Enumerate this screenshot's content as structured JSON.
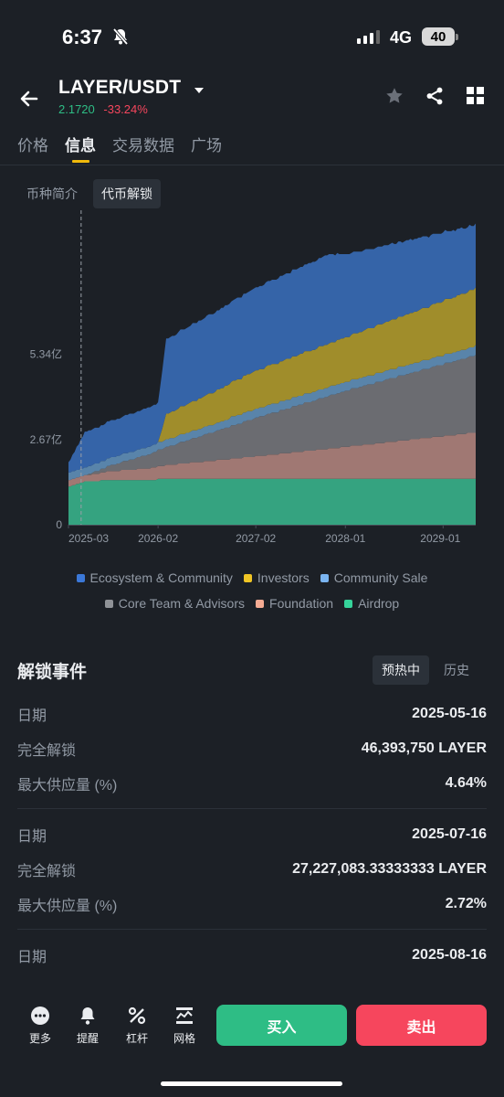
{
  "status": {
    "time": "6:37",
    "network": "4G",
    "battery": "40"
  },
  "header": {
    "pair": "LAYER/USDT",
    "price": "2.1720",
    "change": "-33.24%"
  },
  "tabs": [
    {
      "label": "价格"
    },
    {
      "label": "信息"
    },
    {
      "label": "交易数据"
    },
    {
      "label": "广场"
    }
  ],
  "subtabs": [
    {
      "label": "币种简介"
    },
    {
      "label": "代币解锁"
    }
  ],
  "chart_data": {
    "type": "area",
    "stacked": true,
    "ytick_labels": [
      "0",
      "2.67亿",
      "5.34亿"
    ],
    "y_ticks": [
      0,
      267,
      534
    ],
    "ylim": [
      0,
      1000
    ],
    "xtick_labels": [
      "2025-03",
      "2026-02",
      "2027-02",
      "2028-01",
      "2029-01"
    ],
    "x_ticks": [
      0,
      11,
      23,
      34,
      46
    ],
    "xlim": [
      0,
      50
    ],
    "current_marker": 2,
    "legend_position": "bottom",
    "series": [
      {
        "name": "Airdrop",
        "color": "#35a380",
        "values": [
          [
            0,
            120
          ],
          [
            2,
            135
          ],
          [
            5,
            140
          ],
          [
            11,
            142
          ],
          [
            23,
            142
          ],
          [
            50,
            142
          ]
        ]
      },
      {
        "name": "Foundation",
        "color": "#a07873",
        "values": [
          [
            0,
            20
          ],
          [
            2,
            20
          ],
          [
            11,
            40
          ],
          [
            23,
            70
          ],
          [
            34,
            100
          ],
          [
            50,
            145
          ]
        ]
      },
      {
        "name": "Core Team & Advisors",
        "color": "#6b6c71",
        "values": [
          [
            0,
            0
          ],
          [
            2,
            0
          ],
          [
            11,
            50
          ],
          [
            23,
            120
          ],
          [
            34,
            175
          ],
          [
            50,
            242
          ]
        ]
      },
      {
        "name": "Community Sale",
        "color": "#5984aa",
        "values": [
          [
            0,
            25
          ],
          [
            2,
            25
          ],
          [
            11,
            25
          ],
          [
            12,
            25
          ],
          [
            50,
            30
          ]
        ]
      },
      {
        "name": "Investors",
        "color": "#a08d2b",
        "values": [
          [
            0,
            0
          ],
          [
            2,
            0
          ],
          [
            11,
            0
          ],
          [
            12,
            80
          ],
          [
            23,
            120
          ],
          [
            34,
            140
          ],
          [
            50,
            180
          ]
        ]
      },
      {
        "name": "Ecosystem & Community",
        "color": "#3564a8",
        "values": [
          [
            0,
            30
          ],
          [
            2,
            110
          ],
          [
            11,
            125
          ],
          [
            12,
            235
          ],
          [
            23,
            260
          ],
          [
            32,
            280
          ],
          [
            34,
            260
          ],
          [
            50,
            200
          ]
        ]
      }
    ]
  },
  "legend": [
    [
      {
        "name": "Ecosystem & Community",
        "color": "#3b78d8"
      },
      {
        "name": "Investors",
        "color": "#f0c525"
      },
      {
        "name": "Community Sale",
        "color": "#7ab4f0"
      }
    ],
    [
      {
        "name": "Core Team & Advisors",
        "color": "#8f9297"
      },
      {
        "name": "Foundation",
        "color": "#f5ab93"
      },
      {
        "name": "Airdrop",
        "color": "#35d39a"
      }
    ]
  ],
  "events": {
    "title": "解锁事件",
    "tabs": [
      {
        "label": "预热中"
      },
      {
        "label": "历史"
      }
    ],
    "items": [
      {
        "date_label": "日期",
        "date": "2025-05-16",
        "unlock_label": "完全解锁",
        "unlock": "46,393,750 LAYER",
        "supply_label": "最大供应量 (%)",
        "supply": "4.64%"
      },
      {
        "date_label": "日期",
        "date": "2025-07-16",
        "unlock_label": "完全解锁",
        "unlock": "27,227,083.33333333 LAYER",
        "supply_label": "最大供应量 (%)",
        "supply": "2.72%"
      },
      {
        "date_label": "日期",
        "date": "2025-08-16"
      }
    ]
  },
  "bottom_nav": [
    {
      "label": "更多"
    },
    {
      "label": "提醒"
    },
    {
      "label": "杠杆"
    },
    {
      "label": "网格"
    }
  ],
  "actions": {
    "buy": "买入",
    "sell": "卖出"
  }
}
